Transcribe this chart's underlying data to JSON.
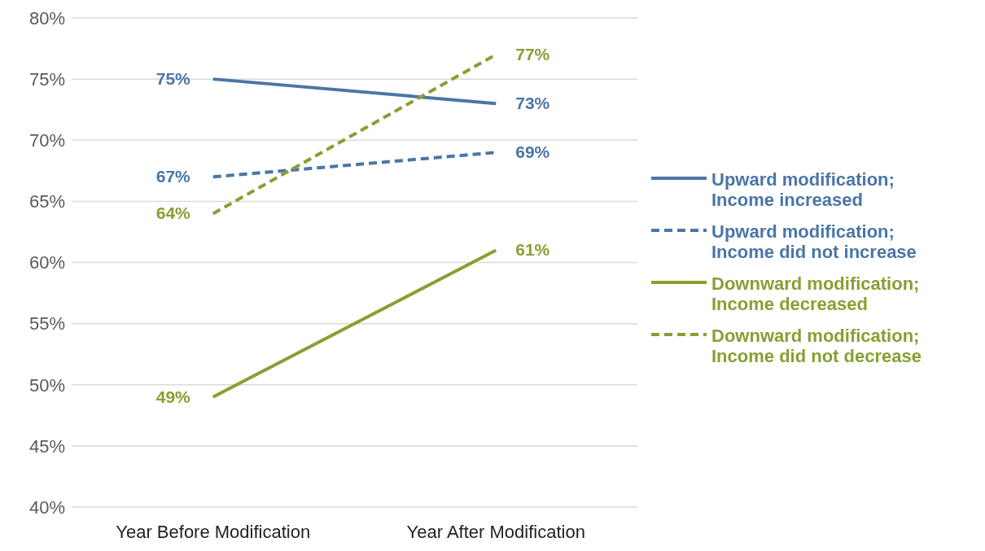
{
  "chart_data": {
    "type": "line",
    "categories": [
      "Year Before Modification",
      "Year After Modification"
    ],
    "series": [
      {
        "name": "Upward modification; Income increased",
        "color": "#4a76a6",
        "line_style": "solid",
        "values": [
          75,
          73
        ],
        "value_labels": [
          "75%",
          "73%"
        ]
      },
      {
        "name": "Upward modification; Income did not increase",
        "color": "#4a76a6",
        "line_style": "dashed",
        "values": [
          67,
          69
        ],
        "value_labels": [
          "67%",
          "69%"
        ]
      },
      {
        "name": "Downward modification; Income decreased",
        "color": "#86a032",
        "line_style": "solid",
        "values": [
          49,
          61
        ],
        "value_labels": [
          "49%",
          "61%"
        ]
      },
      {
        "name": "Downward modification; Income did not decrease",
        "color": "#86a032",
        "line_style": "dashed",
        "values": [
          64,
          77
        ],
        "value_labels": [
          "64%",
          "77%"
        ]
      }
    ],
    "ylim": [
      40,
      80
    ],
    "yticks": [
      {
        "value": 40,
        "label": "40%"
      },
      {
        "value": 45,
        "label": "45%"
      },
      {
        "value": 50,
        "label": "50%"
      },
      {
        "value": 55,
        "label": "55%"
      },
      {
        "value": 60,
        "label": "60%"
      },
      {
        "value": 65,
        "label": "65%"
      },
      {
        "value": 70,
        "label": "70%"
      },
      {
        "value": 75,
        "label": "75%"
      },
      {
        "value": 80,
        "label": "80%"
      }
    ],
    "grid": "y",
    "legend": "right",
    "marker": "none"
  }
}
